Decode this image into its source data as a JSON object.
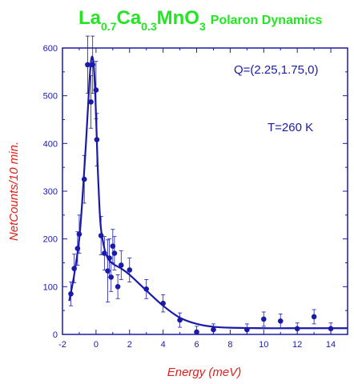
{
  "chart_data": {
    "type": "scatter",
    "title": {
      "parts": [
        {
          "text": "La",
          "sub": false
        },
        {
          "text": "0.7",
          "sub": true
        },
        {
          "text": "Ca",
          "sub": false
        },
        {
          "text": "0.3",
          "sub": true
        },
        {
          "text": "MnO",
          "sub": false
        },
        {
          "text": "3",
          "sub": true
        },
        {
          "text": "Polaron Dynamics",
          "sub": false,
          "small": true
        }
      ]
    },
    "xlabel": "Energy (meV)",
    "ylabel": "NetCounts/10 min.",
    "xlim": [
      -2,
      15
    ],
    "ylim": [
      0,
      600
    ],
    "xticks": [
      -2,
      0,
      2,
      4,
      6,
      8,
      10,
      12,
      14
    ],
    "yticks": [
      0,
      100,
      200,
      300,
      400,
      500,
      600
    ],
    "annotations": [
      "Q=(2.25,1.75,0)",
      "T=260 K"
    ],
    "grid": false,
    "colors": {
      "data": "#1a1aa8",
      "title": "#22e622",
      "axis_label": "#e0201a",
      "ticks": "#1a1aa8"
    },
    "series": [
      {
        "kind": "points",
        "points": [
          {
            "x": -1.5,
            "y": 85,
            "err": 25
          },
          {
            "x": -1.3,
            "y": 138,
            "err": 30
          },
          {
            "x": -1.1,
            "y": 180,
            "err": 35
          },
          {
            "x": -1.0,
            "y": 210,
            "err": 40
          },
          {
            "x": -0.7,
            "y": 325,
            "err": 50
          },
          {
            "x": -0.5,
            "y": 565,
            "err": 60
          },
          {
            "x": -0.3,
            "y": 487,
            "err": 55
          },
          {
            "x": -0.2,
            "y": 565,
            "err": 60
          },
          {
            "x": 0.0,
            "y": 512,
            "err": 60
          },
          {
            "x": 0.05,
            "y": 408,
            "err": 55
          },
          {
            "x": 0.3,
            "y": 207,
            "err": 40
          },
          {
            "x": 0.5,
            "y": 170,
            "err": 35
          },
          {
            "x": 0.7,
            "y": 133,
            "err": 65
          },
          {
            "x": 0.8,
            "y": 160,
            "err": 40
          },
          {
            "x": 0.9,
            "y": 120,
            "err": 30
          },
          {
            "x": 1.0,
            "y": 185,
            "err": 35
          },
          {
            "x": 1.1,
            "y": 170,
            "err": 35
          },
          {
            "x": 1.3,
            "y": 100,
            "err": 25
          },
          {
            "x": 1.5,
            "y": 145,
            "err": 30
          },
          {
            "x": 2.0,
            "y": 135,
            "err": 25
          },
          {
            "x": 3.0,
            "y": 95,
            "err": 20
          },
          {
            "x": 4.0,
            "y": 65,
            "err": 18
          },
          {
            "x": 5.0,
            "y": 30,
            "err": 15
          },
          {
            "x": 6.0,
            "y": 5,
            "err": 12
          },
          {
            "x": 7.0,
            "y": 10,
            "err": 12
          },
          {
            "x": 9.0,
            "y": 10,
            "err": 12
          },
          {
            "x": 10.0,
            "y": 32,
            "err": 15
          },
          {
            "x": 11.0,
            "y": 28,
            "err": 15
          },
          {
            "x": 12.0,
            "y": 12,
            "err": 12
          },
          {
            "x": 13.0,
            "y": 37,
            "err": 15
          },
          {
            "x": 14.0,
            "y": 12,
            "err": 12
          }
        ]
      },
      {
        "kind": "fit-line",
        "x": [
          -1.6,
          -1.3,
          -1.0,
          -0.8,
          -0.6,
          -0.4,
          -0.3,
          -0.2,
          -0.1,
          0.0,
          0.1,
          0.2,
          0.3,
          0.5,
          0.7,
          1.0,
          1.5,
          2.0,
          3.0,
          4.0,
          5.0,
          6.0,
          7.0,
          8.0,
          10.0,
          12.0,
          14.0,
          15.0
        ],
        "y": [
          70,
          125,
          200,
          290,
          400,
          525,
          572,
          580,
          545,
          460,
          350,
          270,
          220,
          180,
          160,
          148,
          138,
          125,
          92,
          60,
          35,
          22,
          16,
          14,
          13,
          13,
          13,
          13
        ]
      }
    ]
  }
}
